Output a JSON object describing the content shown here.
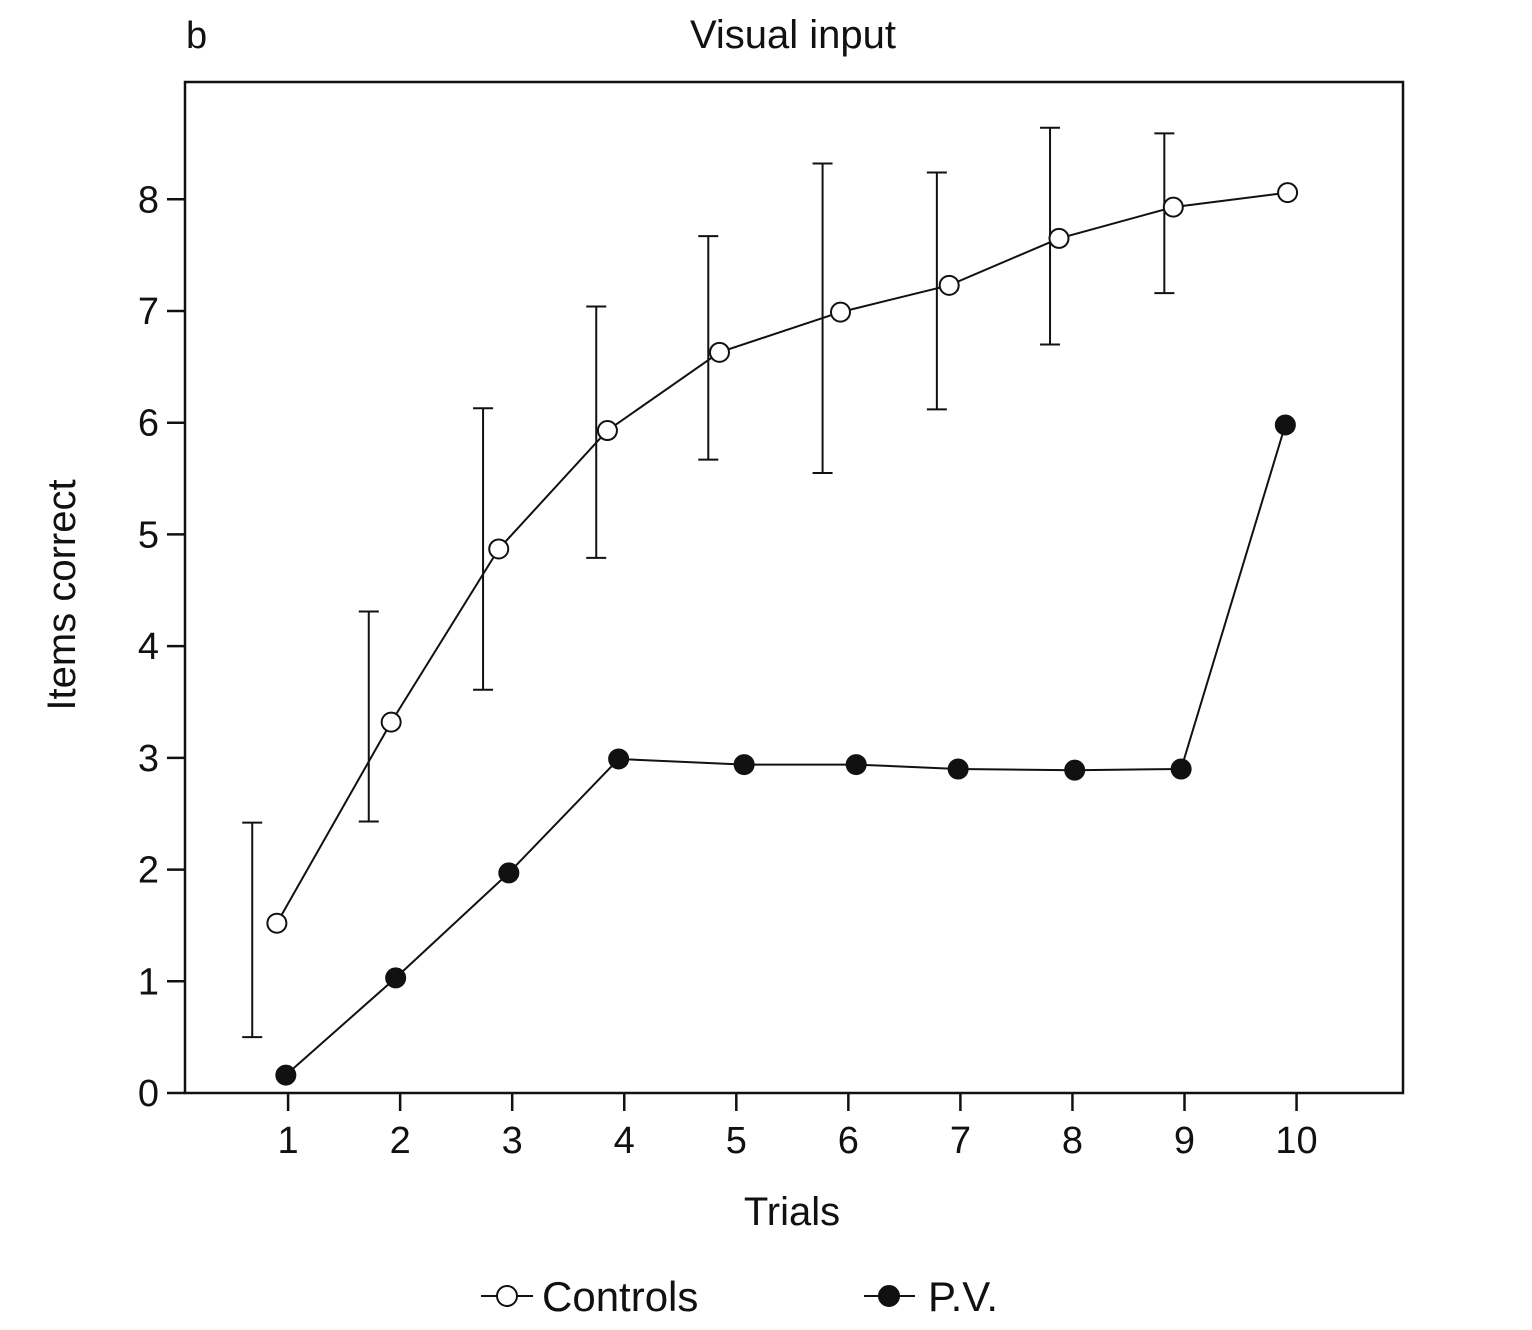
{
  "chart_data": {
    "type": "line",
    "panel_label": "b",
    "title": "Visual input",
    "xlabel": "Trials",
    "ylabel": "Items correct",
    "x_ticks": [
      1,
      2,
      3,
      4,
      5,
      6,
      7,
      8,
      9,
      10
    ],
    "y_ticks": [
      0,
      1,
      2,
      3,
      4,
      5,
      6,
      7,
      8
    ],
    "xlim": [
      0.08,
      10.95
    ],
    "ylim": [
      0,
      9.05
    ],
    "grid": false,
    "legend_position": "bottom",
    "series": [
      {
        "name": "Controls",
        "marker": "open-circle",
        "x": [
          0.9,
          1.92,
          2.88,
          3.85,
          4.85,
          5.93,
          6.9,
          7.88,
          8.9,
          9.92
        ],
        "y": [
          1.52,
          3.32,
          4.87,
          5.93,
          6.63,
          6.99,
          7.23,
          7.65,
          7.93,
          8.06
        ],
        "error_bars": [
          {
            "x": 0.68,
            "low": 0.5,
            "high": 2.42
          },
          {
            "x": 1.72,
            "low": 2.43,
            "high": 4.31
          },
          {
            "x": 2.74,
            "low": 3.61,
            "high": 6.13
          },
          {
            "x": 3.75,
            "low": 4.79,
            "high": 7.04
          },
          {
            "x": 4.75,
            "low": 5.67,
            "high": 7.67
          },
          {
            "x": 5.77,
            "low": 5.55,
            "high": 8.32
          },
          {
            "x": 6.79,
            "low": 6.12,
            "high": 8.24
          },
          {
            "x": 7.8,
            "low": 6.7,
            "high": 8.64
          },
          {
            "x": 8.82,
            "low": 7.16,
            "high": 8.59
          }
        ]
      },
      {
        "name": "P.V.",
        "marker": "filled-circle",
        "x": [
          0.98,
          1.96,
          2.97,
          3.95,
          5.07,
          6.07,
          6.98,
          8.02,
          8.97,
          9.9
        ],
        "y": [
          0.16,
          1.03,
          1.97,
          2.99,
          2.94,
          2.94,
          2.9,
          2.89,
          2.9,
          5.98
        ]
      }
    ]
  }
}
